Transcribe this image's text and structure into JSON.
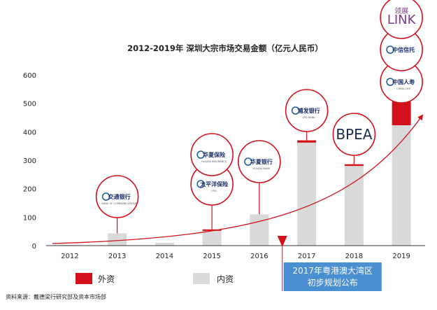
{
  "colors": {
    "foreign": "#d1121b",
    "domestic": "#d9d9d9",
    "accent_blue": "#4a8fd0",
    "axis": "#333333"
  },
  "chart_data": {
    "type": "bar",
    "stacked": true,
    "title": "2012-2019年 深圳大宗市场交易金额（亿元人民币）",
    "categories": [
      "2012",
      "2013",
      "2014",
      "2015",
      "2016",
      "2017",
      "2018",
      "2019"
    ],
    "series": [
      {
        "name": "内资",
        "color": "#d9d9d9",
        "values": [
          3,
          43,
          10,
          52,
          110,
          362,
          280,
          423
        ]
      },
      {
        "name": "外资",
        "color": "#d1121b",
        "values": [
          0,
          0,
          0,
          5,
          0,
          8,
          6,
          83
        ]
      }
    ],
    "ylim": [
      0,
      600
    ],
    "yticks": [
      0,
      100,
      200,
      300,
      400,
      500,
      600
    ],
    "xlabel": "",
    "ylabel": "",
    "grid": false,
    "legend": {
      "position": "bottom-left",
      "items": [
        "外资",
        "内资"
      ]
    },
    "trend_arrow": true
  },
  "investors": [
    {
      "year": "2013",
      "logos": [
        {
          "icon": "bocom-logo",
          "text": "交通银行",
          "sub": "BANK OF COMMUNICATIONS"
        }
      ]
    },
    {
      "year": "2015",
      "logos": [
        {
          "icon": "cpic-logo",
          "text": "太平洋保险",
          "sub": "CPIC"
        },
        {
          "icon": "huaxia-insurance-logo",
          "text": "华夏保险",
          "sub": "HUAXIA INSURANCE"
        }
      ]
    },
    {
      "year": "2016",
      "logos": [
        {
          "icon": "huaxia-bank-logo",
          "text": "华夏银行",
          "sub": "HUAXIA BANK"
        }
      ]
    },
    {
      "year": "2017",
      "logos": [
        {
          "icon": "spdb-logo",
          "text": "浦发银行",
          "sub": "SPD BANK"
        }
      ]
    },
    {
      "year": "2018",
      "logos": [
        {
          "icon": "bpea-logo",
          "text": "BPEA",
          "sub": ""
        }
      ]
    },
    {
      "year": "2019",
      "logos": [
        {
          "icon": "china-life-logo",
          "text": "中国人寿",
          "sub": "CHINA LIFE"
        },
        {
          "icon": "citic-trust-logo",
          "text": "中信信托",
          "sub": ""
        },
        {
          "icon": "link-reit-logo",
          "text": "LINK",
          "sub": "领展"
        }
      ]
    }
  ],
  "annotation": {
    "year": "2017",
    "line1": "2017年粤港澳大湾区",
    "line2": "初步规划公布"
  },
  "source": "资料来源：戴德梁行研究部及资本市场部"
}
